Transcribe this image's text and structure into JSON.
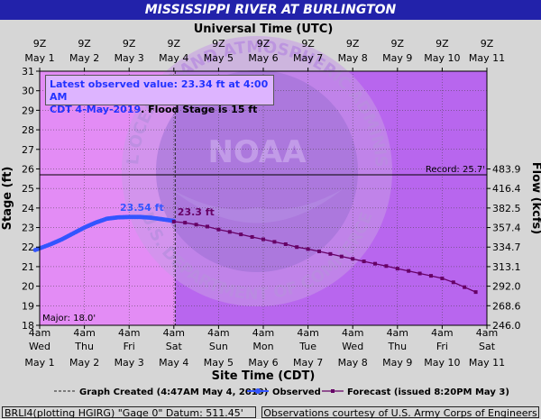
{
  "title": "MISSISSIPPI RIVER AT BURLINGTON",
  "info_box": {
    "line1": "Latest observed value: 23.34 ft at 4:00 AM",
    "line2a": "CDT 4-May-2019",
    "line2b": ". Flood Stage is 15 ft"
  },
  "legend": {
    "graph_created": "Graph Created (4:47AM May 4, 2019)",
    "observed": "Observed",
    "forecast": "Forecast (issued 8:20PM May 3)"
  },
  "footer": {
    "left": "BRLI4(plotting HGIRG) \"Gage 0\" Datum: 511.45'",
    "right": "Observations courtesy of U.S. Army Corps of Engineers"
  },
  "watermark": {
    "text": "NOAA",
    "ring_top": "NATIONAL OCEANIC AND ATMOSPHERIC ADMINISTRATION",
    "ring_bottom": "U.S. DEPARTMENT OF COMMERCE"
  },
  "colors": {
    "plot_bg": "#e38cf5",
    "plot_bg_after": "#b866ee",
    "observed": "#3355ff",
    "forecast": "#660066",
    "title_bar": "#2222aa"
  },
  "chart_data": {
    "type": "line",
    "title": "MISSISSIPPI RIVER AT BURLINGTON",
    "xlabel_top": "Universal Time (UTC)",
    "xlabel_bottom": "Site Time (CDT)",
    "ylabel": "Stage (ft)",
    "ylabel_right": "Flow (kcfs)",
    "ylim": [
      18,
      31
    ],
    "xlim_days": [
      0,
      10
    ],
    "grid": true,
    "yticks": [
      18,
      19,
      20,
      21,
      22,
      23,
      24,
      25,
      26,
      27,
      28,
      29,
      30,
      31
    ],
    "right_ticks": [
      {
        "stage": 18,
        "label": "246.0"
      },
      {
        "stage": 19,
        "label": "268.6"
      },
      {
        "stage": 20,
        "label": "292.0"
      },
      {
        "stage": 21,
        "label": "313.1"
      },
      {
        "stage": 22,
        "label": "334.7"
      },
      {
        "stage": 23,
        "label": "357.4"
      },
      {
        "stage": 24,
        "label": "382.5"
      },
      {
        "stage": 25,
        "label": "416.4"
      },
      {
        "stage": 26,
        "label": "483.9"
      }
    ],
    "top_ticks": [
      {
        "line1": "9Z",
        "line2": "May 1"
      },
      {
        "line1": "9Z",
        "line2": "May 2"
      },
      {
        "line1": "9Z",
        "line2": "May 3"
      },
      {
        "line1": "9Z",
        "line2": "May 4"
      },
      {
        "line1": "9Z",
        "line2": "May 5"
      },
      {
        "line1": "9Z",
        "line2": "May 6"
      },
      {
        "line1": "9Z",
        "line2": "May 7"
      },
      {
        "line1": "9Z",
        "line2": "May 8"
      },
      {
        "line1": "9Z",
        "line2": "May 9"
      },
      {
        "line1": "9Z",
        "line2": "May 10"
      },
      {
        "line1": "9Z",
        "line2": "May 11"
      }
    ],
    "bottom_ticks": [
      {
        "line1": "4am",
        "line2": "Wed",
        "line3": "May 1"
      },
      {
        "line1": "4am",
        "line2": "Thu",
        "line3": "May 2"
      },
      {
        "line1": "4am",
        "line2": "Fri",
        "line3": "May 3"
      },
      {
        "line1": "4am",
        "line2": "Sat",
        "line3": "May 4"
      },
      {
        "line1": "4am",
        "line2": "Sun",
        "line3": "May 5"
      },
      {
        "line1": "4am",
        "line2": "Mon",
        "line3": "May 6"
      },
      {
        "line1": "4am",
        "line2": "Tue",
        "line3": "May 7"
      },
      {
        "line1": "4am",
        "line2": "Wed",
        "line3": "May 8"
      },
      {
        "line1": "4am",
        "line2": "Thu",
        "line3": "May 9"
      },
      {
        "line1": "4am",
        "line2": "Fri",
        "line3": "May 10"
      },
      {
        "line1": "4am",
        "line2": "Sat",
        "line3": "May 11"
      }
    ],
    "record": {
      "value": 25.7,
      "label": "Record: 25.7'"
    },
    "major": {
      "value": 18.0,
      "label": "Major: 18.0'"
    },
    "graph_created_day": 3.03,
    "observed": {
      "name": "Observed",
      "x": [
        -0.1,
        0.25,
        0.5,
        0.75,
        1.0,
        1.25,
        1.5,
        1.75,
        2.0,
        2.25,
        2.5,
        2.75,
        3.0
      ],
      "y": [
        21.85,
        22.15,
        22.4,
        22.7,
        23.0,
        23.25,
        23.45,
        23.52,
        23.54,
        23.54,
        23.5,
        23.42,
        23.34
      ],
      "peak_label": "23.54 ft",
      "peak_x": 2.4
    },
    "forecast": {
      "name": "Forecast (issued 8:20PM May 3)",
      "x": [
        3.0,
        3.25,
        3.5,
        3.75,
        4.0,
        4.25,
        4.5,
        4.75,
        5.0,
        5.25,
        5.5,
        5.75,
        6.0,
        6.25,
        6.5,
        6.75,
        7.0,
        7.25,
        7.5,
        7.75,
        8.0,
        8.25,
        8.5,
        8.75,
        9.0,
        9.25,
        9.5,
        9.75
      ],
      "y": [
        23.3,
        23.25,
        23.15,
        23.05,
        22.9,
        22.78,
        22.65,
        22.52,
        22.4,
        22.27,
        22.15,
        22.0,
        21.9,
        21.78,
        21.65,
        21.52,
        21.4,
        21.27,
        21.15,
        21.03,
        20.9,
        20.78,
        20.65,
        20.53,
        20.4,
        20.2,
        19.95,
        19.7
      ],
      "first_label": "23.3 ft"
    }
  }
}
